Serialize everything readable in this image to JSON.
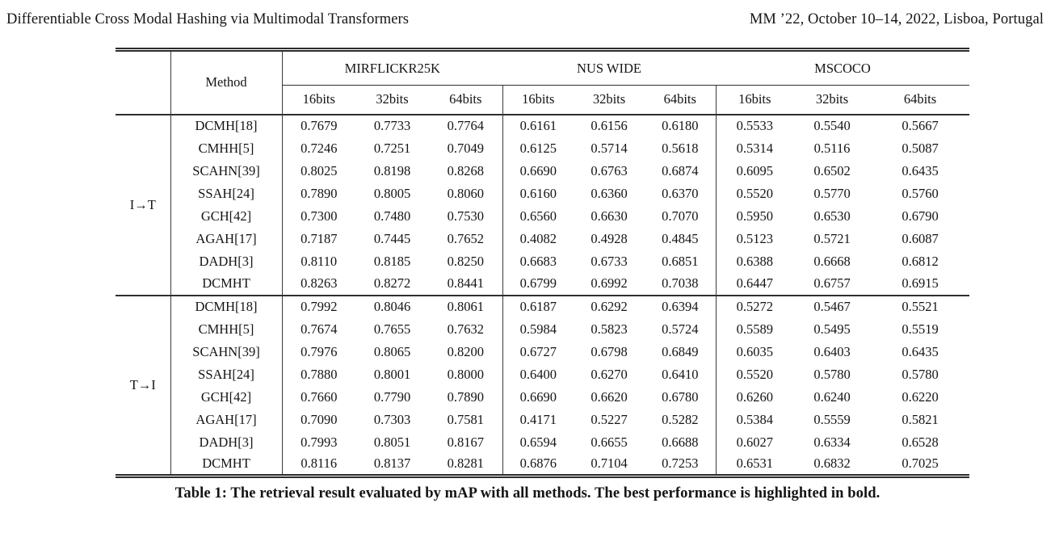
{
  "page_header": {
    "running_title": "Differentiable Cross Modal Hashing via Multimodal Transformers",
    "conference_info": "MM ’22, October 10–14, 2022, Lisboa, Portugal"
  },
  "table": {
    "method_header": "Method",
    "dataset_groups": [
      "MIRFLICKR25K",
      "NUS WIDE",
      "MSCOCO"
    ],
    "bit_headers": [
      "16bits",
      "32bits",
      "64bits"
    ],
    "blocks": [
      {
        "label": "I→T",
        "rows": [
          {
            "method": "DCMH[18]",
            "values": [
              "0.7679",
              "0.7733",
              "0.7764",
              "0.6161",
              "0.6156",
              "0.6180",
              "0.5533",
              "0.5540",
              "0.5667"
            ],
            "bold": []
          },
          {
            "method": "CMHH[5]",
            "values": [
              "0.7246",
              "0.7251",
              "0.7049",
              "0.6125",
              "0.5714",
              "0.5618",
              "0.5314",
              "0.5116",
              "0.5087"
            ],
            "bold": []
          },
          {
            "method": "SCAHN[39]",
            "values": [
              "0.8025",
              "0.8198",
              "0.8268",
              "0.6690",
              "0.6763",
              "0.6874",
              "0.6095",
              "0.6502",
              "0.6435"
            ],
            "bold": []
          },
          {
            "method": "SSAH[24]",
            "values": [
              "0.7890",
              "0.8005",
              "0.8060",
              "0.6160",
              "0.6360",
              "0.6370",
              "0.5520",
              "0.5770",
              "0.5760"
            ],
            "bold": []
          },
          {
            "method": "GCH[42]",
            "values": [
              "0.7300",
              "0.7480",
              "0.7530",
              "0.6560",
              "0.6630",
              "0.7070",
              "0.5950",
              "0.6530",
              "0.6790"
            ],
            "bold": [
              5
            ]
          },
          {
            "method": "AGAH[17]",
            "values": [
              "0.7187",
              "0.7445",
              "0.7652",
              "0.4082",
              "0.4928",
              "0.4845",
              "0.5123",
              "0.5721",
              "0.6087"
            ],
            "bold": []
          },
          {
            "method": "DADH[3]",
            "values": [
              "0.8110",
              "0.8185",
              "0.8250",
              "0.6683",
              "0.6733",
              "0.6851",
              "0.6388",
              "0.6668",
              "0.6812"
            ],
            "bold": []
          },
          {
            "method": "DCMHT",
            "values": [
              "0.8263",
              "0.8272",
              "0.8441",
              "0.6799",
              "0.6992",
              "0.7038",
              "0.6447",
              "0.6757",
              "0.6915"
            ],
            "bold": [
              0,
              1,
              2,
              3,
              4,
              6,
              7,
              8
            ]
          }
        ]
      },
      {
        "label": "T→I",
        "rows": [
          {
            "method": "DCMH[18]",
            "values": [
              "0.7992",
              "0.8046",
              "0.8061",
              "0.6187",
              "0.6292",
              "0.6394",
              "0.5272",
              "0.5467",
              "0.5521"
            ],
            "bold": []
          },
          {
            "method": "CMHH[5]",
            "values": [
              "0.7674",
              "0.7655",
              "0.7632",
              "0.5984",
              "0.5823",
              "0.5724",
              "0.5589",
              "0.5495",
              "0.5519"
            ],
            "bold": []
          },
          {
            "method": "SCAHN[39]",
            "values": [
              "0.7976",
              "0.8065",
              "0.8200",
              "0.6727",
              "0.6798",
              "0.6849",
              "0.6035",
              "0.6403",
              "0.6435"
            ],
            "bold": []
          },
          {
            "method": "SSAH[24]",
            "values": [
              "0.7880",
              "0.8001",
              "0.8000",
              "0.6400",
              "0.6270",
              "0.6410",
              "0.5520",
              "0.5780",
              "0.5780"
            ],
            "bold": []
          },
          {
            "method": "GCH[42]",
            "values": [
              "0.7660",
              "0.7790",
              "0.7890",
              "0.6690",
              "0.6620",
              "0.6780",
              "0.6260",
              "0.6240",
              "0.6220"
            ],
            "bold": []
          },
          {
            "method": "AGAH[17]",
            "values": [
              "0.7090",
              "0.7303",
              "0.7581",
              "0.4171",
              "0.5227",
              "0.5282",
              "0.5384",
              "0.5559",
              "0.5821"
            ],
            "bold": []
          },
          {
            "method": "DADH[3]",
            "values": [
              "0.7993",
              "0.8051",
              "0.8167",
              "0.6594",
              "0.6655",
              "0.6688",
              "0.6027",
              "0.6334",
              "0.6528"
            ],
            "bold": []
          },
          {
            "method": "DCMHT",
            "values": [
              "0.8116",
              "0.8137",
              "0.8281",
              "0.6876",
              "0.7104",
              "0.7253",
              "0.6531",
              "0.6832",
              "0.7025"
            ],
            "bold": [
              0,
              1,
              2,
              3,
              4,
              5,
              6,
              7,
              8
            ]
          }
        ]
      }
    ]
  },
  "caption": "Table 1: The retrieval result evaluated by mAP with all methods. The best performance is highlighted in bold."
}
